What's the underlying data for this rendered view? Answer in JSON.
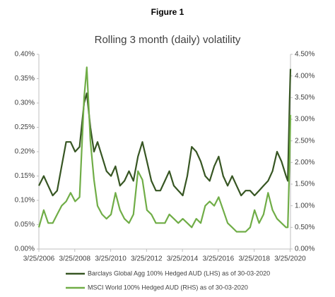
{
  "chart_data": {
    "type": "line",
    "figure_label": "Figure 1",
    "title": "Rolling 3 month (daily) volatility",
    "x": [
      2006.23,
      2006.5,
      2006.75,
      2007,
      2007.25,
      2007.5,
      2007.75,
      2008,
      2008.25,
      2008.5,
      2008.75,
      2008.9,
      2009.1,
      2009.3,
      2009.5,
      2009.75,
      2010,
      2010.25,
      2010.5,
      2010.75,
      2011,
      2011.25,
      2011.5,
      2011.75,
      2012,
      2012.25,
      2012.5,
      2012.75,
      2013,
      2013.25,
      2013.5,
      2013.75,
      2014,
      2014.25,
      2014.5,
      2014.75,
      2015,
      2015.25,
      2015.5,
      2015.75,
      2016,
      2016.25,
      2016.5,
      2016.75,
      2017,
      2017.25,
      2017.5,
      2017.75,
      2018,
      2018.25,
      2018.5,
      2018.75,
      2019,
      2019.25,
      2019.5,
      2019.75,
      2020,
      2020.1,
      2020.2,
      2020.25
    ],
    "series": [
      {
        "name": "Barclays Global Agg 100% Hedged AUD (LHS) as of 30-03-2020",
        "color": "#375623",
        "axis": "y",
        "values": [
          0.13,
          0.15,
          0.13,
          0.11,
          0.12,
          0.17,
          0.22,
          0.22,
          0.2,
          0.21,
          0.3,
          0.32,
          0.25,
          0.2,
          0.22,
          0.19,
          0.16,
          0.15,
          0.17,
          0.13,
          0.14,
          0.16,
          0.14,
          0.19,
          0.22,
          0.18,
          0.14,
          0.12,
          0.12,
          0.14,
          0.16,
          0.13,
          0.12,
          0.11,
          0.15,
          0.21,
          0.2,
          0.18,
          0.15,
          0.14,
          0.17,
          0.19,
          0.15,
          0.13,
          0.15,
          0.13,
          0.11,
          0.12,
          0.12,
          0.11,
          0.12,
          0.13,
          0.14,
          0.16,
          0.2,
          0.18,
          0.15,
          0.14,
          0.3,
          0.37
        ]
      },
      {
        "name": "MSCI World 100% Hedged AUD (RHS) as of 30-03-2020",
        "color": "#70ad47",
        "axis": "y2",
        "values": [
          0.5,
          0.9,
          0.6,
          0.6,
          0.8,
          1.0,
          1.1,
          1.3,
          1.1,
          1.2,
          3.5,
          4.2,
          2.5,
          1.6,
          1.0,
          0.8,
          0.7,
          0.8,
          1.3,
          0.9,
          0.7,
          0.6,
          0.8,
          1.8,
          1.6,
          0.9,
          0.8,
          0.6,
          0.6,
          0.6,
          0.8,
          0.7,
          0.6,
          0.7,
          0.6,
          0.5,
          0.7,
          0.6,
          1.0,
          1.1,
          1.0,
          1.2,
          0.9,
          0.6,
          0.5,
          0.4,
          0.4,
          0.4,
          0.5,
          0.9,
          0.6,
          0.8,
          1.3,
          0.9,
          0.7,
          0.6,
          0.5,
          0.5,
          2.0,
          3.1
        ]
      }
    ],
    "xlim": [
      2006.23,
      2020.25
    ],
    "xticks": [
      {
        "value": 2006.23,
        "label": "3/25/2006"
      },
      {
        "value": 2008.23,
        "label": "3/25/2008"
      },
      {
        "value": 2010.23,
        "label": "3/25/2010"
      },
      {
        "value": 2012.23,
        "label": "3/25/2012"
      },
      {
        "value": 2014.23,
        "label": "3/25/2014"
      },
      {
        "value": 2016.23,
        "label": "3/25/2016"
      },
      {
        "value": 2018.23,
        "label": "3/25/2018"
      },
      {
        "value": 2020.23,
        "label": "3/25/2020"
      }
    ],
    "ylim": [
      0,
      0.4
    ],
    "yticks": [
      {
        "value": 0,
        "label": "0.00%"
      },
      {
        "value": 0.05,
        "label": "0.05%"
      },
      {
        "value": 0.1,
        "label": "0.10%"
      },
      {
        "value": 0.15,
        "label": "0.15%"
      },
      {
        "value": 0.2,
        "label": "0.20%"
      },
      {
        "value": 0.25,
        "label": "0.25%"
      },
      {
        "value": 0.3,
        "label": "0.30%"
      },
      {
        "value": 0.35,
        "label": "0.35%"
      },
      {
        "value": 0.4,
        "label": "0.40%"
      }
    ],
    "y2lim": [
      0,
      4.5
    ],
    "y2ticks": [
      {
        "value": 0,
        "label": "0.00%"
      },
      {
        "value": 0.5,
        "label": "0.50%"
      },
      {
        "value": 1,
        "label": "1.00%"
      },
      {
        "value": 1.5,
        "label": "1.50%"
      },
      {
        "value": 2,
        "label": "2.00%"
      },
      {
        "value": 2.5,
        "label": "2.50%"
      },
      {
        "value": 3,
        "label": "3.00%"
      },
      {
        "value": 3.5,
        "label": "3.50%"
      },
      {
        "value": 4,
        "label": "4.00%"
      },
      {
        "value": 4.5,
        "label": "4.50%"
      }
    ],
    "legend": "bottom"
  }
}
